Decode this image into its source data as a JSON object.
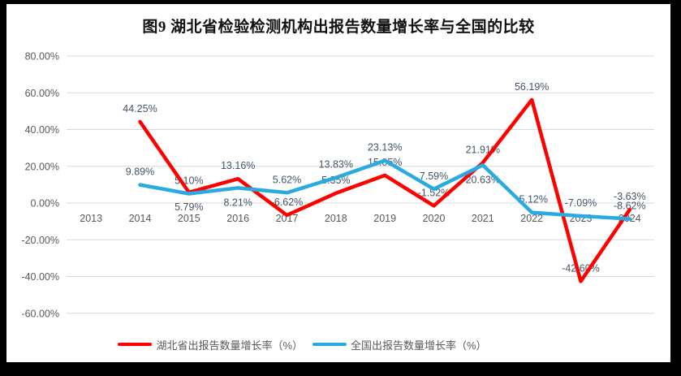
{
  "title": "图9 湖北省检验检测机构出报告数量增长率与全国的比较",
  "legend": {
    "items": [
      {
        "label": "湖北省出报告数量增长率（%）",
        "color": "#FF0000"
      },
      {
        "label": "全国出报告数量增长率（%）",
        "color": "#29ABE2"
      }
    ]
  },
  "colors": {
    "hubei_line": "#FF0000",
    "national_line": "#29ABE2",
    "gridline": "#D9D9D9",
    "tick_text": "#595959",
    "data_label_text": "#44546A",
    "frame": "#000000",
    "background": "#FFFFFF"
  },
  "chart_data": {
    "type": "line",
    "title": "图9 湖北省检验检测机构出报告数量增长率与全国的比较",
    "categories": [
      "2013",
      "2014",
      "2015",
      "2016",
      "2017",
      "2018",
      "2019",
      "2020",
      "2021",
      "2022",
      "2023",
      "2024"
    ],
    "series": [
      {
        "name": "湖北省出报告数量增长率（%）",
        "color": "#FF0000",
        "values": [
          null,
          44.25,
          5.79,
          13.16,
          -6.62,
          5.35,
          15.05,
          -1.52,
          21.91,
          56.19,
          -42.6,
          -3.63
        ]
      },
      {
        "name": "全国出报告数量增长率（%）",
        "color": "#29ABE2",
        "values": [
          null,
          9.89,
          5.1,
          8.21,
          5.62,
          13.83,
          23.13,
          7.59,
          20.63,
          -5.12,
          -7.09,
          -8.62
        ]
      }
    ],
    "y_ticks": [
      "80.00%",
      "60.00%",
      "40.00%",
      "20.00%",
      "0.00%",
      "-20.00%",
      "-40.00%",
      "-60.00%"
    ],
    "ylim": [
      -60,
      80
    ],
    "xlabel": "",
    "ylabel": "",
    "grid": true,
    "data_labels": true,
    "legend_position": "bottom"
  }
}
